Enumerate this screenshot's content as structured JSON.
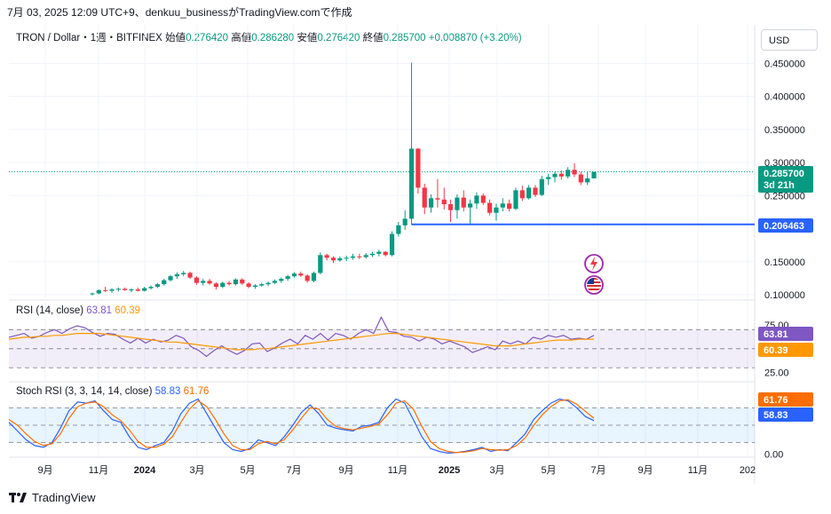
{
  "header": {
    "text": "7月 03, 2025 12:09 UTC+9、denkuu_businessがTradingView.comで作成"
  },
  "legend": {
    "symbol": "TRON / Dollar・1週・BITFINEX",
    "open_label": "始値",
    "open": "0.276420",
    "high_label": "高値",
    "high": "0.286280",
    "low_label": "安値",
    "low": "0.276420",
    "close_label": "終値",
    "close": "0.285700",
    "change": "+0.008870 (+3.20%)"
  },
  "currency_button": "USD",
  "colors": {
    "up": "#089981",
    "down": "#f23645",
    "hline": "#2962ff",
    "rsi_line": "#7e57c2",
    "rsi_ma": "#ff9800",
    "stoch_k": "#2962ff",
    "stoch_d": "#ff6d00"
  },
  "icons": [
    "lightning-icon",
    "us-flag-icon",
    "tradingview-logo-icon"
  ],
  "price_tags": {
    "current": "0.285700",
    "countdown": "3d 21h",
    "hline": "0.206463"
  },
  "rsi_legend": {
    "label": "RSI (14, close)",
    "value1": "63.81",
    "value2": "60.39"
  },
  "stoch_legend": {
    "label": "Stoch RSI (3, 3, 14, 14, close)",
    "value1": "58.83",
    "value2": "61.76"
  },
  "footer": {
    "brand": "TradingView"
  },
  "chart_data": [
    {
      "type": "candlestick",
      "interval": "1 week",
      "price_axis": [
        "0.450000",
        "0.400000",
        "0.350000",
        "0.300000",
        "0.250000",
        "0.150000",
        "0.100000"
      ],
      "ylim": [
        0.096,
        0.468
      ],
      "time_axis": [
        "9月",
        "11月",
        "2024",
        "3月",
        "5月",
        "7月",
        "9月",
        "11月",
        "2025",
        "3月",
        "5月",
        "7月",
        "9月",
        "11月",
        "202"
      ],
      "candles_ohlc": [
        [
          0.101,
          0.103,
          0.099,
          0.102
        ],
        [
          0.102,
          0.108,
          0.101,
          0.107
        ],
        [
          0.107,
          0.112,
          0.104,
          0.106
        ],
        [
          0.106,
          0.11,
          0.103,
          0.108
        ],
        [
          0.108,
          0.111,
          0.105,
          0.109
        ],
        [
          0.109,
          0.111,
          0.106,
          0.107
        ],
        [
          0.107,
          0.11,
          0.104,
          0.108
        ],
        [
          0.108,
          0.111,
          0.105,
          0.106
        ],
        [
          0.106,
          0.112,
          0.105,
          0.11
        ],
        [
          0.11,
          0.114,
          0.108,
          0.112
        ],
        [
          0.112,
          0.118,
          0.11,
          0.116
        ],
        [
          0.116,
          0.124,
          0.114,
          0.122
        ],
        [
          0.122,
          0.13,
          0.12,
          0.128
        ],
        [
          0.128,
          0.134,
          0.124,
          0.131
        ],
        [
          0.131,
          0.136,
          0.128,
          0.133
        ],
        [
          0.133,
          0.135,
          0.124,
          0.126
        ],
        [
          0.126,
          0.128,
          0.115,
          0.118
        ],
        [
          0.118,
          0.124,
          0.114,
          0.121
        ],
        [
          0.121,
          0.124,
          0.115,
          0.117
        ],
        [
          0.117,
          0.119,
          0.108,
          0.112
        ],
        [
          0.112,
          0.12,
          0.11,
          0.118
        ],
        [
          0.118,
          0.121,
          0.114,
          0.116
        ],
        [
          0.116,
          0.125,
          0.114,
          0.123
        ],
        [
          0.123,
          0.125,
          0.115,
          0.117
        ],
        [
          0.117,
          0.119,
          0.11,
          0.112
        ],
        [
          0.112,
          0.116,
          0.109,
          0.114
        ],
        [
          0.114,
          0.118,
          0.112,
          0.116
        ],
        [
          0.116,
          0.12,
          0.113,
          0.118
        ],
        [
          0.118,
          0.123,
          0.116,
          0.121
        ],
        [
          0.121,
          0.126,
          0.118,
          0.124
        ],
        [
          0.124,
          0.13,
          0.121,
          0.128
        ],
        [
          0.128,
          0.134,
          0.126,
          0.132
        ],
        [
          0.132,
          0.135,
          0.127,
          0.129
        ],
        [
          0.129,
          0.131,
          0.118,
          0.121
        ],
        [
          0.121,
          0.135,
          0.119,
          0.133
        ],
        [
          0.133,
          0.164,
          0.131,
          0.16
        ],
        [
          0.16,
          0.162,
          0.152,
          0.156
        ],
        [
          0.156,
          0.158,
          0.148,
          0.152
        ],
        [
          0.152,
          0.158,
          0.15,
          0.155
        ],
        [
          0.155,
          0.159,
          0.151,
          0.156
        ],
        [
          0.156,
          0.162,
          0.153,
          0.158
        ],
        [
          0.158,
          0.162,
          0.154,
          0.157
        ],
        [
          0.157,
          0.163,
          0.155,
          0.16
        ],
        [
          0.16,
          0.165,
          0.157,
          0.162
        ],
        [
          0.162,
          0.168,
          0.158,
          0.165
        ],
        [
          0.165,
          0.166,
          0.158,
          0.16
        ],
        [
          0.16,
          0.196,
          0.158,
          0.192
        ],
        [
          0.192,
          0.21,
          0.188,
          0.205
        ],
        [
          0.205,
          0.228,
          0.198,
          0.215
        ],
        [
          0.215,
          0.451,
          0.206,
          0.321
        ],
        [
          0.321,
          0.322,
          0.253,
          0.262
        ],
        [
          0.262,
          0.268,
          0.222,
          0.232
        ],
        [
          0.232,
          0.252,
          0.224,
          0.246
        ],
        [
          0.246,
          0.275,
          0.232,
          0.244
        ],
        [
          0.244,
          0.262,
          0.229,
          0.237
        ],
        [
          0.237,
          0.244,
          0.21,
          0.228
        ],
        [
          0.228,
          0.252,
          0.215,
          0.247
        ],
        [
          0.247,
          0.258,
          0.226,
          0.232
        ],
        [
          0.232,
          0.244,
          0.206,
          0.238
        ],
        [
          0.238,
          0.255,
          0.23,
          0.25
        ],
        [
          0.25,
          0.253,
          0.236,
          0.239
        ],
        [
          0.239,
          0.244,
          0.22,
          0.224
        ],
        [
          0.224,
          0.238,
          0.212,
          0.232
        ],
        [
          0.232,
          0.246,
          0.226,
          0.238
        ],
        [
          0.238,
          0.244,
          0.226,
          0.23
        ],
        [
          0.23,
          0.262,
          0.228,
          0.258
        ],
        [
          0.258,
          0.265,
          0.242,
          0.246
        ],
        [
          0.246,
          0.266,
          0.244,
          0.262
        ],
        [
          0.262,
          0.266,
          0.248,
          0.251
        ],
        [
          0.251,
          0.28,
          0.249,
          0.275
        ],
        [
          0.275,
          0.283,
          0.266,
          0.278
        ],
        [
          0.278,
          0.286,
          0.27,
          0.283
        ],
        [
          0.283,
          0.288,
          0.274,
          0.279
        ],
        [
          0.279,
          0.293,
          0.276,
          0.289
        ],
        [
          0.289,
          0.299,
          0.278,
          0.282
        ],
        [
          0.282,
          0.286,
          0.266,
          0.27
        ],
        [
          0.27,
          0.286,
          0.266,
          0.276
        ],
        [
          0.276,
          0.286,
          0.276,
          0.286
        ]
      ],
      "horizontal_level": 0.206463
    },
    {
      "type": "line",
      "title": "RSI (14, close)",
      "axis": [
        "75.00",
        "25.00"
      ],
      "ylim": [
        20,
        88
      ],
      "bands": [
        70,
        50,
        30
      ],
      "series": [
        {
          "name": "RSI",
          "values": [
            62,
            64,
            66,
            61,
            63,
            67,
            70,
            66,
            71,
            74,
            72,
            67,
            63,
            66,
            65,
            60,
            56,
            61,
            56,
            60,
            57,
            59,
            64,
            61,
            52,
            48,
            42,
            48,
            53,
            48,
            44,
            48,
            55,
            56,
            47,
            51,
            56,
            60,
            55,
            64,
            60,
            66,
            59,
            66,
            64,
            60,
            66,
            70,
            66,
            83,
            68,
            67,
            63,
            62,
            58,
            62,
            60,
            55,
            58,
            55,
            52,
            46,
            49,
            52,
            49,
            58,
            55,
            58,
            55,
            62,
            60,
            64,
            62,
            64,
            60,
            61,
            60,
            64
          ]
        },
        {
          "name": "MA",
          "values": [
            60,
            61,
            62,
            62,
            63,
            63,
            64,
            64,
            65,
            66,
            66,
            66,
            66,
            65,
            64,
            63,
            62,
            61,
            60,
            59,
            58,
            57,
            57,
            56,
            55,
            54,
            53,
            52,
            51,
            50,
            49,
            49,
            49,
            50,
            50,
            51,
            52,
            53,
            54,
            55,
            56,
            57,
            58,
            59,
            60,
            61,
            62,
            63,
            64,
            65,
            66,
            66,
            65,
            64,
            63,
            62,
            61,
            60,
            59,
            58,
            57,
            56,
            55,
            54,
            53,
            53,
            53,
            54,
            55,
            56,
            57,
            58,
            59,
            59,
            59,
            60,
            60,
            60
          ]
        }
      ],
      "last_values": [
        "63.81",
        "60.39"
      ]
    },
    {
      "type": "line",
      "title": "Stoch RSI (3, 3, 14, 14, close)",
      "axis": [
        "100.00",
        "0.00"
      ],
      "ylim": [
        -5,
        105
      ],
      "bands": [
        80,
        50,
        20
      ],
      "series": [
        {
          "name": "K",
          "values": [
            55,
            40,
            25,
            15,
            12,
            20,
            45,
            75,
            90,
            88,
            92,
            75,
            60,
            55,
            30,
            12,
            8,
            15,
            20,
            40,
            70,
            88,
            95,
            70,
            45,
            20,
            8,
            5,
            10,
            25,
            20,
            15,
            30,
            50,
            72,
            85,
            70,
            50,
            45,
            42,
            40,
            48,
            50,
            55,
            80,
            95,
            88,
            60,
            30,
            10,
            5,
            2,
            3,
            5,
            8,
            12,
            5,
            8,
            6,
            20,
            35,
            60,
            75,
            88,
            95,
            92,
            80,
            65,
            58
          ]
        },
        {
          "name": "D",
          "values": [
            60,
            50,
            35,
            22,
            15,
            18,
            35,
            62,
            82,
            88,
            90,
            82,
            68,
            58,
            42,
            22,
            12,
            12,
            17,
            30,
            55,
            78,
            92,
            82,
            60,
            35,
            15,
            8,
            8,
            18,
            22,
            18,
            25,
            42,
            62,
            80,
            78,
            60,
            48,
            44,
            42,
            45,
            48,
            52,
            68,
            88,
            92,
            78,
            48,
            22,
            10,
            5,
            3,
            4,
            6,
            10,
            8,
            7,
            8,
            15,
            28,
            50,
            68,
            82,
            92,
            94,
            86,
            74,
            62
          ]
        }
      ],
      "last_values": [
        "58.83",
        "61.76"
      ]
    }
  ]
}
